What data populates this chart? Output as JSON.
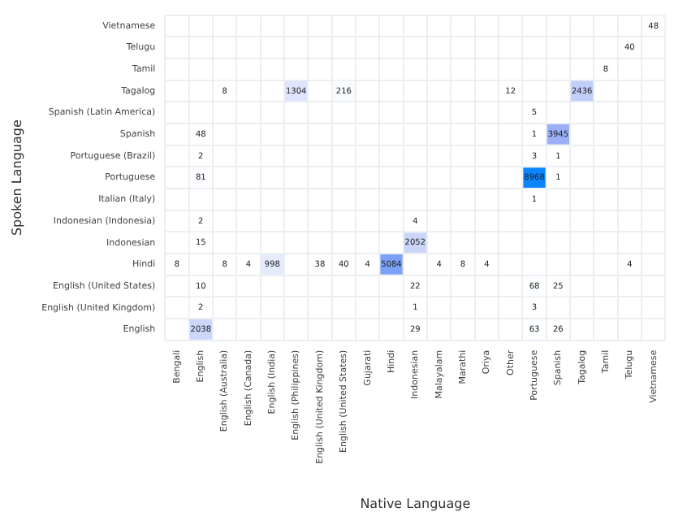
{
  "chart_data": {
    "type": "heatmap",
    "xlabel": "Native Language",
    "ylabel": "Spoken Language",
    "categories": [
      "Bengali",
      "English",
      "English (Australia)",
      "English (Canada)",
      "English (India)",
      "English (Philippines)",
      "English (United Kingdom)",
      "English (United States)",
      "Gujarati",
      "Hindi",
      "Indonesian",
      "Malayalam",
      "Marathi",
      "Oriya",
      "Other",
      "Portuguese",
      "Spanish",
      "Tagalog",
      "Tamil",
      "Telugu",
      "Vietnamese"
    ],
    "y_categories": [
      "Vietnamese",
      "Telugu",
      "Tamil",
      "Tagalog",
      "Spanish (Latin America)",
      "Spanish",
      "Portuguese (Brazil)",
      "Portuguese",
      "Italian (Italy)",
      "Indonesian (Indonesia)",
      "Indonesian",
      "Hindi",
      "English (United States)",
      "English (United Kingdom)",
      "English"
    ],
    "cells": [
      [
        null,
        null,
        null,
        null,
        null,
        null,
        null,
        null,
        null,
        null,
        null,
        null,
        null,
        null,
        null,
        null,
        null,
        null,
        null,
        null,
        48
      ],
      [
        null,
        null,
        null,
        null,
        null,
        null,
        null,
        null,
        null,
        null,
        null,
        null,
        null,
        null,
        null,
        null,
        null,
        null,
        null,
        40,
        null
      ],
      [
        null,
        null,
        null,
        null,
        null,
        null,
        null,
        null,
        null,
        null,
        null,
        null,
        null,
        null,
        null,
        null,
        null,
        null,
        8,
        null,
        null
      ],
      [
        null,
        null,
        8,
        null,
        null,
        1304,
        null,
        216,
        null,
        null,
        null,
        null,
        null,
        null,
        12,
        null,
        null,
        2436,
        null,
        null,
        null
      ],
      [
        null,
        null,
        null,
        null,
        null,
        null,
        null,
        null,
        null,
        null,
        null,
        null,
        null,
        null,
        null,
        5,
        null,
        null,
        null,
        null,
        null
      ],
      [
        null,
        48,
        null,
        null,
        null,
        null,
        null,
        null,
        null,
        null,
        null,
        null,
        null,
        null,
        null,
        1,
        3945,
        null,
        null,
        null,
        null
      ],
      [
        null,
        2,
        null,
        null,
        null,
        null,
        null,
        null,
        null,
        null,
        null,
        null,
        null,
        null,
        null,
        3,
        1,
        null,
        null,
        null,
        null
      ],
      [
        null,
        81,
        null,
        null,
        null,
        null,
        null,
        null,
        null,
        null,
        null,
        null,
        null,
        null,
        null,
        8968,
        1,
        null,
        null,
        null,
        null
      ],
      [
        null,
        null,
        null,
        null,
        null,
        null,
        null,
        null,
        null,
        null,
        null,
        null,
        null,
        null,
        null,
        1,
        null,
        null,
        null,
        null,
        null
      ],
      [
        null,
        2,
        null,
        null,
        null,
        null,
        null,
        null,
        null,
        null,
        4,
        null,
        null,
        null,
        null,
        null,
        null,
        null,
        null,
        null,
        null
      ],
      [
        null,
        15,
        null,
        null,
        null,
        null,
        null,
        null,
        null,
        null,
        2052,
        null,
        null,
        null,
        null,
        null,
        null,
        null,
        null,
        null,
        null
      ],
      [
        8,
        null,
        8,
        4,
        998,
        null,
        38,
        40,
        4,
        5084,
        null,
        4,
        8,
        4,
        null,
        null,
        null,
        null,
        null,
        4,
        null
      ],
      [
        null,
        10,
        null,
        null,
        null,
        null,
        null,
        null,
        null,
        null,
        22,
        null,
        null,
        null,
        null,
        68,
        25,
        null,
        null,
        null,
        null
      ],
      [
        null,
        2,
        null,
        null,
        null,
        null,
        null,
        null,
        null,
        null,
        1,
        null,
        null,
        null,
        null,
        3,
        null,
        null,
        null,
        null,
        null
      ],
      [
        null,
        2038,
        null,
        null,
        null,
        null,
        null,
        null,
        null,
        null,
        29,
        null,
        null,
        null,
        null,
        63,
        26,
        null,
        null,
        null,
        null
      ]
    ],
    "data_labels": true,
    "grid": true
  }
}
